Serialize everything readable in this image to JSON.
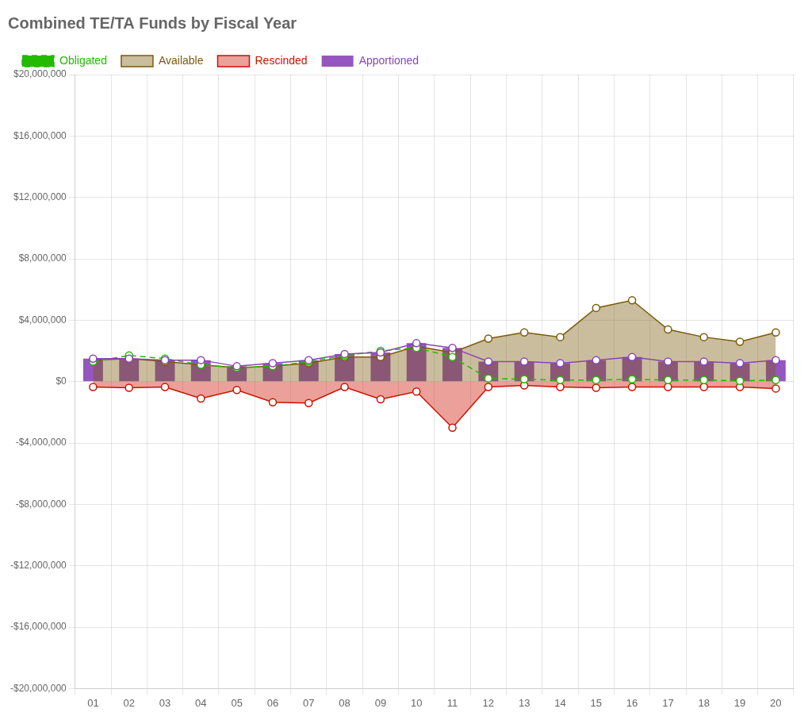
{
  "chart_data": {
    "type": "line",
    "title": "Combined TE/TA Funds by Fiscal Year",
    "categories": [
      "01",
      "02",
      "03",
      "04",
      "05",
      "06",
      "07",
      "08",
      "09",
      "10",
      "11",
      "12",
      "13",
      "14",
      "15",
      "16",
      "17",
      "18",
      "19",
      "20"
    ],
    "series": [
      {
        "name": "Available",
        "type": "area",
        "color": "#7B5A0A",
        "marker": "circle",
        "line_style": "solid",
        "values": [
          1400000,
          1500000,
          1300000,
          1100000,
          900000,
          1000000,
          1200000,
          1600000,
          1600000,
          2300000,
          1900000,
          2800000,
          3200000,
          2900000,
          4800000,
          5300000,
          3400000,
          2900000,
          2600000,
          3200000
        ]
      },
      {
        "name": "Apportioned",
        "type": "bar",
        "color": "#8B44B8",
        "marker": "circle",
        "line_style": "solid",
        "values": [
          1500000,
          1500000,
          1400000,
          1400000,
          1000000,
          1200000,
          1400000,
          1800000,
          1900000,
          2500000,
          2200000,
          1300000,
          1300000,
          1200000,
          1400000,
          1600000,
          1300000,
          1300000,
          1200000,
          1400000
        ]
      },
      {
        "name": "Obligated",
        "type": "line",
        "color": "#22BB00",
        "marker": "circle",
        "line_style": "dashed",
        "values": [
          1300000,
          1700000,
          1500000,
          1100000,
          900000,
          1000000,
          1300000,
          1700000,
          2000000,
          2200000,
          1600000,
          200000,
          150000,
          100000,
          100000,
          150000,
          100000,
          100000,
          50000,
          100000
        ]
      },
      {
        "name": "Rescinded",
        "type": "area",
        "color": "#CC1100",
        "marker": "circle",
        "line_style": "solid",
        "values": [
          -350000,
          -400000,
          -350000,
          -1100000,
          -550000,
          -1350000,
          -1400000,
          -350000,
          -1150000,
          -650000,
          -3000000,
          -350000,
          -250000,
          -350000,
          -400000,
          -350000,
          -350000,
          -350000,
          -350000,
          -450000
        ]
      }
    ],
    "ylim": [
      -20000000,
      20000000
    ],
    "yticks": [
      {
        "value": -20000000,
        "label": "-$20,000,000"
      },
      {
        "value": -16000000,
        "label": "-$16,000,000"
      },
      {
        "value": -12000000,
        "label": "-$12,000,000"
      },
      {
        "value": -8000000,
        "label": "-$8,000,000"
      },
      {
        "value": -4000000,
        "label": "-$4,000,000"
      },
      {
        "value": 0,
        "label": "$0"
      },
      {
        "value": 4000000,
        "label": "$4,000,000"
      },
      {
        "value": 8000000,
        "label": "$8,000,000"
      },
      {
        "value": 12000000,
        "label": "$12,000,000"
      },
      {
        "value": 16000000,
        "label": "$16,000,000"
      },
      {
        "value": 20000000,
        "label": "$20,000,000"
      }
    ],
    "grid": true,
    "legend": "top left"
  }
}
